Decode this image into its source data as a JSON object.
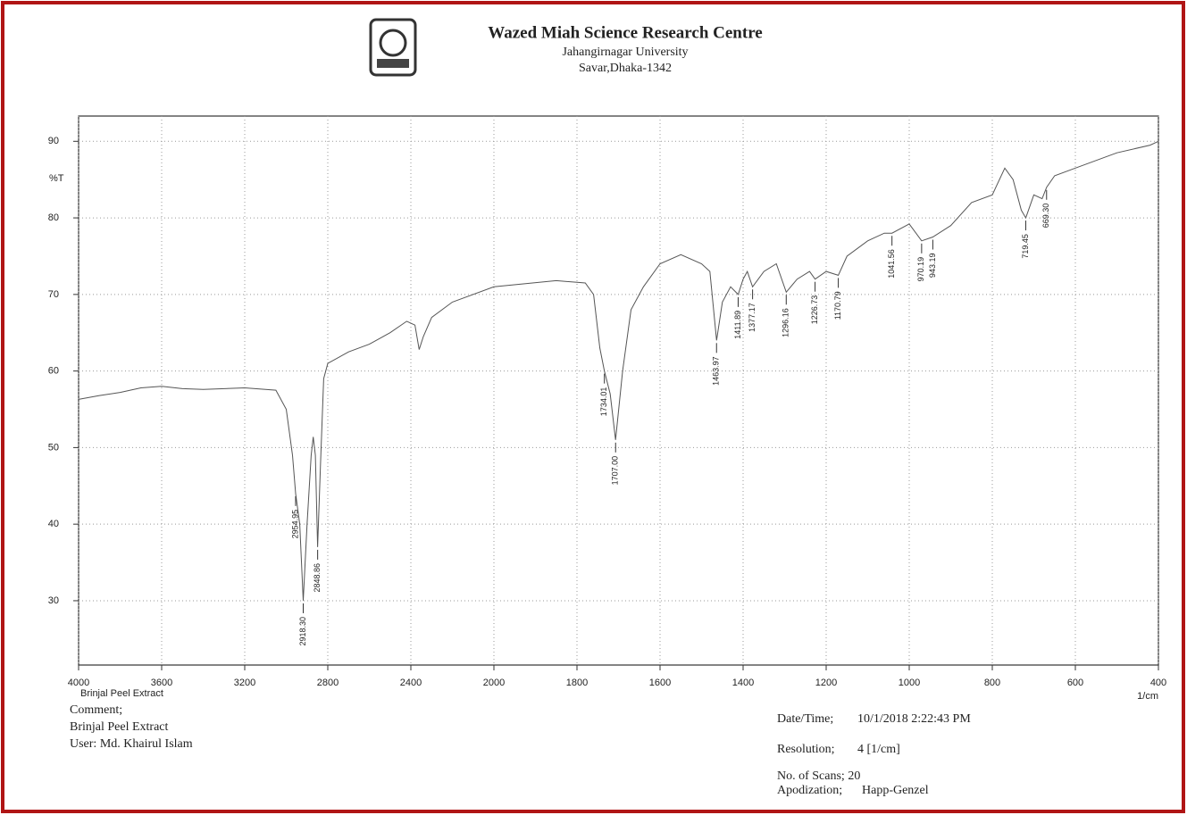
{
  "header": {
    "title": "Wazed Miah Science Research Centre",
    "line1": "Jahangirnagar University",
    "line2": "Savar,Dhaka-1342"
  },
  "chart_data": {
    "type": "line",
    "ylabel": "%T",
    "xlabel": "1/cm",
    "sample_label": "Brinjal Peel Extract",
    "xlim": [
      4000,
      400
    ],
    "ylim": [
      21.6,
      93.3
    ],
    "xticks": [
      4000,
      3600,
      3200,
      2800,
      2400,
      2000,
      1800,
      1600,
      1400,
      1200,
      1000,
      800,
      600,
      400
    ],
    "yticks": [
      30,
      40,
      50,
      60,
      70,
      80,
      90
    ],
    "grid": true,
    "series": [
      {
        "color": "#555555",
        "x": [
          4000,
          3900,
          3800,
          3700,
          3600,
          3500,
          3400,
          3200,
          3050,
          3000,
          2970,
          2954.95,
          2935,
          2918.3,
          2900,
          2880,
          2870,
          2860,
          2848.86,
          2835,
          2820,
          2800,
          2700,
          2600,
          2500,
          2420,
          2380,
          2360,
          2340,
          2300,
          2200,
          2000,
          1850,
          1780,
          1760,
          1745,
          1734.01,
          1720,
          1707,
          1690,
          1670,
          1640,
          1600,
          1550,
          1500,
          1480,
          1463.97,
          1450,
          1430,
          1411.89,
          1400,
          1390,
          1377.17,
          1350,
          1320,
          1296.16,
          1270,
          1240,
          1226.73,
          1200,
          1170.79,
          1150,
          1100,
          1060,
          1041.56,
          1000,
          970.19,
          943.19,
          900,
          850,
          800,
          770,
          750,
          730,
          719.45,
          700,
          680,
          669.3,
          650,
          600,
          500,
          420,
          400
        ],
        "values": [
          56.3,
          56.8,
          57.2,
          57.8,
          58.0,
          57.7,
          57.6,
          57.8,
          57.5,
          55,
          49,
          44,
          40,
          30,
          40,
          49,
          51.4,
          49,
          37,
          48,
          59,
          61,
          62.5,
          63.5,
          65,
          66.5,
          66,
          62.8,
          64.5,
          67,
          69,
          71,
          71.8,
          71.5,
          70,
          63,
          60,
          57,
          51,
          60,
          68,
          71,
          74,
          75.2,
          74,
          73,
          64,
          69,
          71,
          70,
          72,
          73,
          71,
          73,
          74,
          70.3,
          72,
          73,
          72,
          73,
          72.5,
          75,
          77,
          78,
          78,
          79.2,
          77,
          77.5,
          79,
          82,
          83,
          86.5,
          85,
          81,
          80,
          83,
          82.5,
          84,
          85.5,
          86.5,
          88.5,
          89.5,
          90
        ]
      }
    ],
    "peaks": [
      2954.95,
      {
        "value": 2918.3,
        "label": "2918.30"
      },
      2848.86,
      1734.01,
      {
        "value": 1707,
        "label": "1707.00"
      },
      1463.97,
      1411.89,
      1377.17,
      1296.16,
      1226.73,
      1170.79,
      1041.56,
      970.19,
      943.19,
      719.45,
      {
        "value": 669.3,
        "label": "669.30"
      }
    ]
  },
  "footer": {
    "comment_label": "Comment;",
    "comment": "Brinjal Peel Extract",
    "user": "User: Md. Khairul Islam",
    "datetime_label": "Date/Time;",
    "datetime": "10/1/2018 2:22:43 PM",
    "resolution_label": "Resolution;",
    "resolution": "4 [1/cm]",
    "scans": "No. of Scans; 20",
    "apodization_label": "Apodization;",
    "apodization": "Happ-Genzel"
  }
}
